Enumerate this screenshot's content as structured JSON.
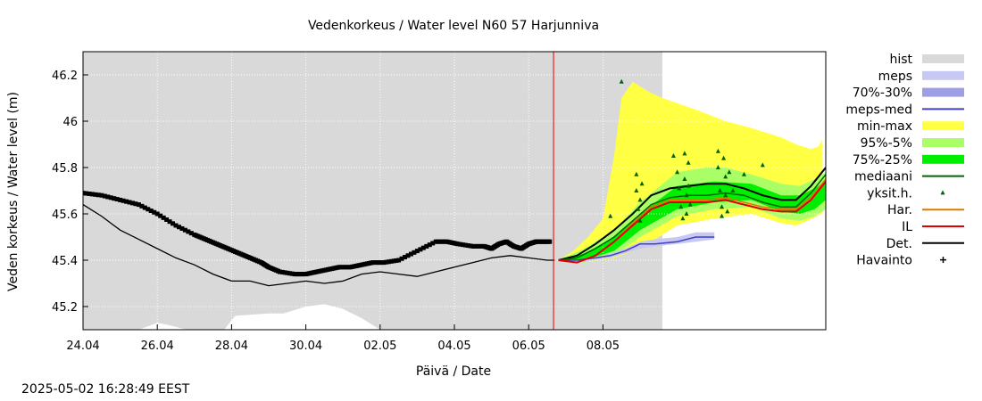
{
  "chart_data": {
    "type": "area",
    "title": "Vedenkorkeus / Water level   N60 57 Harjunniva",
    "xlabel": "Päivä / Date",
    "ylabel": "Veden korkeus / Water level (m)",
    "ylim": [
      45.1,
      46.3
    ],
    "xlim": [
      "2025-04-24",
      "2025-05-09 12:00"
    ],
    "x_ticks": [
      "24.04",
      "26.04",
      "28.04",
      "30.04",
      "02.05",
      "04.05",
      "06.05",
      "08.05"
    ],
    "y_ticks": [
      "45.2",
      "45.4",
      "45.6",
      "45.8",
      "46",
      "46.2"
    ],
    "grid": true,
    "legend_position": "right",
    "forecast_start": "2025-05-02 16:00",
    "legend": [
      {
        "label": "hist",
        "kind": "band",
        "color": "#d9d9d9"
      },
      {
        "label": "meps",
        "kind": "band",
        "color": "#c8c8f4"
      },
      {
        "label": "70%-30%",
        "kind": "band",
        "color": "#9e9ee6"
      },
      {
        "label": "meps-med",
        "kind": "line",
        "color": "#4040c0"
      },
      {
        "label": "min-max",
        "kind": "band",
        "color": "#ffff44"
      },
      {
        "label": "95%-5%",
        "kind": "band",
        "color": "#aaff66"
      },
      {
        "label": "75%-25%",
        "kind": "band",
        "color": "#00ee00"
      },
      {
        "label": "mediaani",
        "kind": "line",
        "color": "#006400"
      },
      {
        "label": "yksit.h.",
        "kind": "marker",
        "color": "#006400"
      },
      {
        "label": "Har.",
        "kind": "line",
        "color": "#e07800"
      },
      {
        "label": "IL",
        "kind": "line",
        "color": "#e00000"
      },
      {
        "label": "Det.",
        "kind": "line",
        "color": "#000000"
      },
      {
        "label": "Havainto",
        "kind": "plus",
        "color": "#000000"
      }
    ],
    "series": {
      "hist_upper": {
        "x": [
          0,
          2,
          3.2,
          4,
          5,
          6,
          7,
          8,
          9,
          10,
          11,
          12,
          13,
          14,
          15,
          15.6
        ],
        "y": [
          46.3,
          46.3,
          46.3,
          46.3,
          46.3,
          46.3,
          46.3,
          46.3,
          46.3,
          46.3,
          46.3,
          46.3,
          46.3,
          46.3,
          46.3,
          46.3
        ]
      },
      "hist_lower": {
        "x": [
          0,
          1.5,
          2,
          2.3,
          2.8,
          3.8,
          4.1,
          5,
          5.4,
          6,
          6.5,
          7,
          7.5,
          8,
          9,
          10,
          15.6
        ],
        "y": [
          45.1,
          45.1,
          45.13,
          45.12,
          45.1,
          45.1,
          45.16,
          45.17,
          45.17,
          45.2,
          45.21,
          45.19,
          45.15,
          45.1,
          45.1,
          45.1,
          45.1
        ]
      },
      "lower_black": {
        "x": [
          0,
          0.5,
          1,
          1.5,
          2,
          2.5,
          3,
          3.5,
          4,
          4.5,
          5,
          5.5,
          6,
          6.5,
          7,
          7.5,
          8,
          8.5,
          9,
          9.5,
          10,
          10.5,
          11,
          11.5,
          12,
          12.5,
          12.7
        ],
        "y": [
          45.64,
          45.59,
          45.53,
          45.49,
          45.45,
          45.41,
          45.38,
          45.34,
          45.31,
          45.31,
          45.29,
          45.3,
          45.31,
          45.3,
          45.31,
          45.34,
          45.35,
          45.34,
          45.33,
          45.35,
          45.37,
          45.39,
          45.41,
          45.42,
          45.41,
          45.4,
          45.4
        ]
      },
      "observed": {
        "x": [
          0,
          0.5,
          1,
          1.5,
          2,
          2.5,
          3,
          3.3,
          3.6,
          3.9,
          4.2,
          4.5,
          4.8,
          5,
          5.3,
          5.7,
          6,
          6.3,
          6.6,
          6.9,
          7.2,
          7.5,
          7.8,
          8.1,
          8.5,
          9,
          9.5,
          9.8,
          10.1,
          10.5,
          10.8,
          11,
          11.2,
          11.4,
          11.6,
          11.8,
          12,
          12.2,
          12.4,
          12.6
        ],
        "y": [
          45.69,
          45.68,
          45.66,
          45.64,
          45.6,
          45.55,
          45.51,
          45.49,
          45.47,
          45.45,
          45.43,
          45.41,
          45.39,
          45.37,
          45.35,
          45.34,
          45.34,
          45.35,
          45.36,
          45.37,
          45.37,
          45.38,
          45.39,
          45.39,
          45.4,
          45.44,
          45.48,
          45.48,
          45.47,
          45.46,
          45.46,
          45.45,
          45.47,
          45.48,
          45.46,
          45.45,
          45.47,
          45.48,
          45.48,
          45.48
        ]
      },
      "minmax_upper": {
        "x": [
          12.8,
          13.2,
          13.6,
          14,
          14.3,
          14.5,
          14.8,
          15.2,
          15.6,
          16.5,
          17.3,
          18,
          18.8,
          19.2,
          19.6,
          19.8,
          19.9
        ],
        "y": [
          45.4,
          45.44,
          45.5,
          45.58,
          45.85,
          46.1,
          46.17,
          46.13,
          46.1,
          46.05,
          46.0,
          45.97,
          45.93,
          45.9,
          45.88,
          45.89,
          45.92
        ]
      },
      "minmax_lower": {
        "x": [
          12.8,
          13.5,
          14.3,
          15,
          16,
          17,
          18,
          18.8,
          19.2,
          19.5,
          19.9
        ],
        "y": [
          45.4,
          45.39,
          45.41,
          45.45,
          45.55,
          45.58,
          45.6,
          45.56,
          45.55,
          45.57,
          45.6
        ]
      },
      "p95_upper": {
        "x": [
          12.8,
          13.5,
          14.3,
          15,
          16,
          16.8,
          17.3,
          18,
          18.8,
          19.3,
          19.7,
          20
        ],
        "y": [
          45.4,
          45.45,
          45.53,
          45.65,
          45.78,
          45.8,
          45.8,
          45.77,
          45.73,
          45.72,
          45.75,
          45.78
        ]
      },
      "p95_lower": {
        "x": [
          12.8,
          13.5,
          14.3,
          15,
          16,
          17,
          18,
          18.8,
          19.3,
          19.7,
          20
        ],
        "y": [
          45.4,
          45.39,
          45.42,
          45.5,
          45.59,
          45.62,
          45.63,
          45.58,
          45.57,
          45.59,
          45.62
        ]
      },
      "p75_upper": {
        "x": [
          12.8,
          13.5,
          14.3,
          15,
          16,
          17,
          18,
          18.8,
          19.3,
          19.7,
          20
        ],
        "y": [
          45.4,
          45.43,
          45.5,
          45.6,
          45.72,
          45.74,
          45.73,
          45.68,
          45.68,
          45.71,
          45.74
        ]
      },
      "p75_lower": {
        "x": [
          12.8,
          13.5,
          14.3,
          15,
          16,
          17,
          18,
          18.8,
          19.3,
          19.7,
          20
        ],
        "y": [
          45.4,
          45.4,
          45.44,
          45.53,
          45.62,
          45.65,
          45.66,
          45.61,
          45.6,
          45.62,
          45.66
        ]
      },
      "meps_upper": {
        "x": [
          12.8,
          13.3,
          13.8,
          14.2,
          14.6,
          15,
          15.4,
          16,
          16.5,
          17
        ],
        "y": [
          45.4,
          45.4,
          45.41,
          45.43,
          45.45,
          45.48,
          45.49,
          45.5,
          45.52,
          45.52
        ]
      },
      "meps_lower": {
        "x": [
          12.8,
          13.3,
          13.8,
          14.2,
          14.6,
          15,
          15.4,
          16,
          16.5,
          17
        ],
        "y": [
          45.4,
          45.39,
          45.4,
          45.41,
          45.43,
          45.45,
          45.46,
          45.47,
          45.48,
          45.49
        ]
      },
      "meps_med": {
        "x": [
          12.8,
          13.3,
          13.8,
          14.2,
          14.6,
          15,
          15.4,
          16,
          16.5,
          17
        ],
        "y": [
          45.4,
          45.4,
          45.41,
          45.42,
          45.44,
          45.47,
          45.47,
          45.48,
          45.5,
          45.5
        ]
      },
      "det": {
        "x": [
          12.8,
          13.3,
          13.8,
          14.3,
          14.8,
          15.3,
          15.8,
          16.3,
          16.8,
          17.3,
          17.8,
          18.3,
          18.8,
          19.2,
          19.6,
          20
        ],
        "y": [
          45.4,
          45.42,
          45.47,
          45.53,
          45.6,
          45.68,
          45.71,
          45.72,
          45.73,
          45.73,
          45.71,
          45.68,
          45.66,
          45.66,
          45.72,
          45.8
        ]
      },
      "mediaani": {
        "x": [
          12.8,
          13.3,
          13.8,
          14.3,
          14.8,
          15.3,
          15.8,
          16.3,
          16.8,
          17.3,
          17.8,
          18.3,
          18.8,
          19.2,
          19.6,
          20
        ],
        "y": [
          45.4,
          45.41,
          45.45,
          45.5,
          45.57,
          45.64,
          45.67,
          45.68,
          45.68,
          45.69,
          45.68,
          45.65,
          45.63,
          45.63,
          45.69,
          45.77
        ]
      },
      "il": {
        "x": [
          12.8,
          13.3,
          13.8,
          14.3,
          14.8,
          15.3,
          15.8,
          16.3,
          16.8,
          17.3,
          17.8,
          18.3,
          18.8,
          19.2,
          19.6,
          20
        ],
        "y": [
          45.4,
          45.39,
          45.42,
          45.48,
          45.55,
          45.62,
          45.65,
          45.65,
          45.65,
          45.66,
          45.64,
          45.62,
          45.61,
          45.61,
          45.66,
          45.74
        ]
      },
      "har": {
        "x": [
          12.8,
          13.3,
          13.8,
          14.3,
          14.8,
          15.3,
          15.8,
          16.3,
          16.8,
          17.3,
          17.8,
          18.3,
          18.8,
          19.2,
          19.6,
          20
        ],
        "y": [
          45.4,
          45.39,
          45.42,
          45.48,
          45.56,
          45.63,
          45.66,
          45.66,
          45.66,
          45.67,
          45.65,
          45.63,
          45.62,
          45.62,
          45.67,
          45.75
        ]
      },
      "single_markers": {
        "x": [
          14.2,
          14.9,
          14.9,
          14.95,
          15.0,
          15.0,
          15.05,
          15.9,
          16.0,
          16.05,
          16.1,
          16.15,
          16.2,
          16.2,
          16.25,
          16.25,
          16.3,
          16.3,
          16.35,
          17.1,
          17.1,
          17.15,
          17.2,
          17.2,
          17.25,
          17.3,
          17.3,
          17.35,
          17.4,
          17.5,
          17.8,
          18.3,
          14.5
        ],
        "y": [
          45.59,
          45.77,
          45.7,
          45.62,
          45.57,
          45.66,
          45.73,
          45.85,
          45.78,
          45.71,
          45.63,
          45.58,
          45.86,
          45.75,
          45.68,
          45.6,
          45.82,
          45.72,
          45.64,
          45.87,
          45.8,
          45.7,
          45.63,
          45.59,
          45.84,
          45.76,
          45.68,
          45.61,
          45.78,
          45.7,
          45.77,
          45.81,
          46.17
        ]
      }
    }
  }
}
